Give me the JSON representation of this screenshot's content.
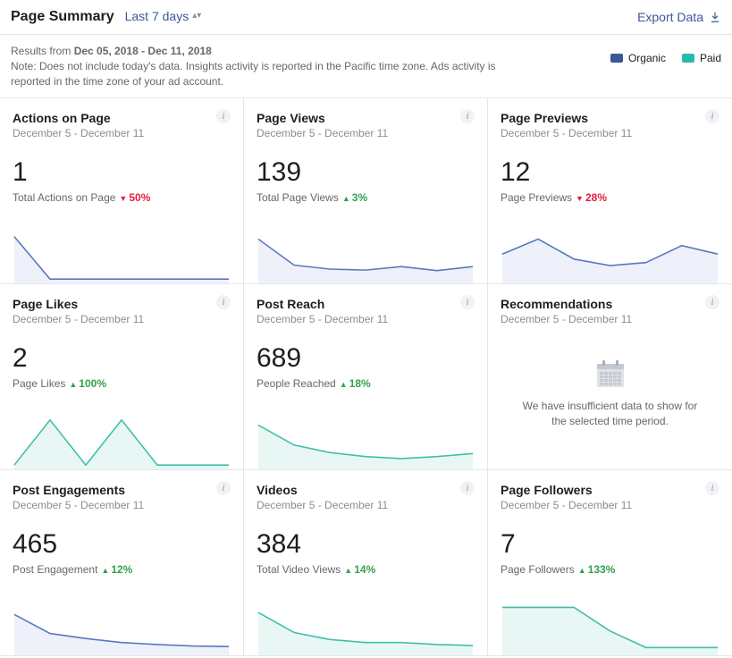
{
  "header": {
    "title": "Page Summary",
    "date_range_label": "Last 7 days",
    "export_label": "Export Data"
  },
  "note": {
    "prefix": "Results from ",
    "range_bold": "Dec 05, 2018 - Dec 11, 2018",
    "body": "Note: Does not include today's data. Insights activity is reported in the Pacific time zone. Ads activity is reported in the time zone of your ad account."
  },
  "legend": {
    "organic": {
      "label": "Organic",
      "color": "#3b5998"
    },
    "paid": {
      "label": "Paid",
      "color": "#2abba7"
    }
  },
  "colors": {
    "line_blue": "#5a78c0",
    "fill_blue": "#eef1f9",
    "line_teal": "#3fbfa9",
    "fill_teal": "#e9f7f4",
    "up": "#31a24c",
    "down": "#e41e3f",
    "grid_border": "#e4e6eb",
    "text_muted": "#8a8d91"
  },
  "cards": [
    {
      "id": "actions",
      "title": "Actions on Page",
      "dates": "December 5 - December 11",
      "value": "1",
      "sub_label": "Total Actions on Page",
      "delta": {
        "dir": "down",
        "text": "50%"
      },
      "series": {
        "color": "blue",
        "points": [
          0.9,
          0.05,
          0.05,
          0.05,
          0.05,
          0.05,
          0.05
        ]
      }
    },
    {
      "id": "page-views",
      "title": "Page Views",
      "dates": "December 5 - December 11",
      "value": "139",
      "sub_label": "Total Page Views",
      "delta": {
        "dir": "up",
        "text": "3%"
      },
      "series": {
        "color": "blue",
        "points": [
          0.85,
          0.33,
          0.25,
          0.23,
          0.3,
          0.22,
          0.3
        ]
      }
    },
    {
      "id": "page-previews",
      "title": "Page Previews",
      "dates": "December 5 - December 11",
      "value": "12",
      "sub_label": "Page Previews",
      "delta": {
        "dir": "down",
        "text": "28%"
      },
      "series": {
        "color": "blue",
        "points": [
          0.55,
          0.85,
          0.45,
          0.32,
          0.38,
          0.72,
          0.55
        ]
      }
    },
    {
      "id": "page-likes",
      "title": "Page Likes",
      "dates": "December 5 - December 11",
      "value": "2",
      "sub_label": "Page Likes",
      "delta": {
        "dir": "up",
        "text": "100%"
      },
      "series": {
        "color": "teal",
        "points": [
          0.05,
          0.95,
          0.05,
          0.95,
          0.05,
          0.05,
          0.05
        ]
      }
    },
    {
      "id": "post-reach",
      "title": "Post Reach",
      "dates": "December 5 - December 11",
      "value": "689",
      "sub_label": "People Reached",
      "delta": {
        "dir": "up",
        "text": "18%"
      },
      "series": {
        "color": "teal",
        "points": [
          0.85,
          0.45,
          0.3,
          0.22,
          0.18,
          0.22,
          0.28
        ]
      }
    },
    {
      "id": "recommendations",
      "title": "Recommendations",
      "dates": "December 5 - December 11",
      "empty": true,
      "empty_text": "We have insufficient data to show for the selected time period."
    },
    {
      "id": "post-engagements",
      "title": "Post Engagements",
      "dates": "December 5 - December 11",
      "value": "465",
      "sub_label": "Post Engagement",
      "delta": {
        "dir": "up",
        "text": "12%"
      },
      "series": {
        "color": "blue",
        "points": [
          0.78,
          0.4,
          0.3,
          0.22,
          0.18,
          0.15,
          0.14
        ]
      }
    },
    {
      "id": "videos",
      "title": "Videos",
      "dates": "December 5 - December 11",
      "value": "384",
      "sub_label": "Total Video Views",
      "delta": {
        "dir": "up",
        "text": "14%"
      },
      "series": {
        "color": "teal",
        "points": [
          0.82,
          0.42,
          0.28,
          0.22,
          0.22,
          0.18,
          0.16
        ]
      }
    },
    {
      "id": "page-followers",
      "title": "Page Followers",
      "dates": "December 5 - December 11",
      "value": "7",
      "sub_label": "Page Followers",
      "delta": {
        "dir": "up",
        "text": "133%"
      },
      "series": {
        "color": "teal",
        "points": [
          0.92,
          0.92,
          0.92,
          0.45,
          0.12,
          0.12,
          0.12
        ]
      }
    }
  ]
}
